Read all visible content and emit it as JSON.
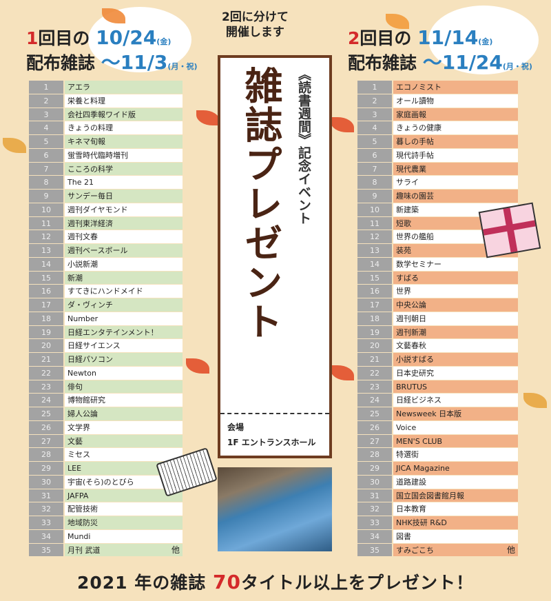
{
  "intro": {
    "line1": "2回に分けて",
    "line2": "開催します"
  },
  "first": {
    "num": "1",
    "label1": "回目の",
    "label2": "配布雑誌",
    "date_start": "10/24",
    "day_start": "(金)",
    "date_end": "～11/3",
    "day_end": "(月・祝)",
    "items": [
      "アエラ",
      "栄養と料理",
      "会社四季報ワイド版",
      "きょうの料理",
      "キネマ旬報",
      "蛍雪時代臨時増刊",
      "こころの科学",
      "The 21",
      "サンデー毎日",
      "週刊ダイヤモンド",
      "週刊東洋経済",
      "週刊文春",
      "週刊ベースボール",
      "小説新潮",
      "新潮",
      "すてきにハンドメイド",
      "ダ・ヴィンチ",
      "Number",
      "日経エンタテインメント！",
      "日経サイエンス",
      "日経パソコン",
      "Newton",
      "俳句",
      "博物館研究",
      "婦人公論",
      "文学界",
      "文藝",
      "ミセス",
      "LEE",
      "宇宙(そら)のとびら",
      "JAFPA",
      "配管技術",
      "地域防災",
      "Mundi",
      "月刊 武道"
    ],
    "other": "他"
  },
  "second": {
    "num": "2",
    "label1": "回目の",
    "label2": "配布雑誌",
    "date_start": "11/14",
    "day_start": "(金)",
    "date_end": "～11/24",
    "day_end": "(月・祝)",
    "items": [
      "エコノミスト",
      "オール讀物",
      "家庭画報",
      "きょうの健康",
      "暮しの手帖",
      "現代詩手帖",
      "現代農業",
      "サライ",
      "趣味の園芸",
      "新建築",
      "短歌",
      "世界の艦船",
      "装苑",
      "数学セミナー",
      "すばる",
      "世界",
      "中央公論",
      "週刊朝日",
      "週刊新潮",
      "文藝春秋",
      "小説すばる",
      "日本史研究",
      "BRUTUS",
      "日経ビジネス",
      "Newsweek 日本版",
      "Voice",
      "MEN'S CLUB",
      "特選街",
      "JICA Magazine",
      "道路建設",
      "国立国会図書館月報",
      "日本教育",
      "NHK技研 R&D",
      "図書",
      "すみごこち"
    ],
    "other": "他"
  },
  "center": {
    "title": "雑誌プレゼント",
    "subtitle": "《読書週間》記念イベント",
    "venue_label": "会場",
    "venue": "1F エントランスホール"
  },
  "footer": {
    "pre": "2021 年の雑誌 ",
    "count": "70",
    "post": "タイトル以上をプレゼント！"
  },
  "colors": {
    "first_accent": "#d5e6c2",
    "second_accent": "#f2b187",
    "frame": "#6e3c20",
    "date": "#2a7fc0"
  }
}
